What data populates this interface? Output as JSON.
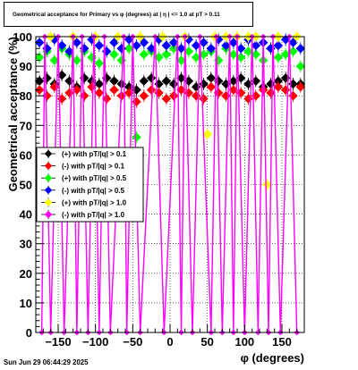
{
  "title": "Geometrical acceptance for Primary vs φ (degrees) at | η | <= 1.0 at pT > 0.11",
  "footer": "Sun Jun 29 06:44:29 2025",
  "chart_data": {
    "type": "scatter",
    "xlabel": "φ (degrees)",
    "ylabel": "Geometrical acceptance (%)",
    "xlim": [
      -180,
      180
    ],
    "ylim": [
      0,
      100
    ],
    "xticks": [
      -150,
      -100,
      -50,
      0,
      50,
      100,
      150
    ],
    "yticks": [
      0,
      10,
      20,
      30,
      40,
      50,
      60,
      70,
      80,
      90,
      100
    ],
    "grid": true,
    "legend_position": "center-left",
    "series": [
      {
        "name": "(+) with pT/|q| > 0.1",
        "color": "#000000",
        "marker": "diamond",
        "x": [
          -175,
          -165,
          -155,
          -145,
          -135,
          -125,
          -115,
          -105,
          -95,
          -85,
          -75,
          -65,
          -55,
          -45,
          -35,
          -25,
          -15,
          -5,
          5,
          15,
          25,
          35,
          45,
          55,
          65,
          75,
          85,
          95,
          105,
          115,
          125,
          135,
          145,
          155,
          165,
          175
        ],
        "y": [
          85,
          86,
          84,
          87,
          85,
          83,
          86,
          85,
          84,
          86,
          85,
          84,
          83,
          82,
          85,
          86,
          84,
          85,
          84,
          86,
          85,
          83,
          84,
          86,
          85,
          84,
          85,
          86,
          84,
          85,
          83,
          84,
          85,
          86,
          84,
          84
        ]
      },
      {
        "name": "(-) with pT/|q| > 0.1",
        "color": "#ff0000",
        "marker": "diamond",
        "x": [
          -175,
          -165,
          -155,
          -145,
          -135,
          -125,
          -115,
          -105,
          -95,
          -85,
          -75,
          -65,
          -55,
          -45,
          -35,
          -25,
          -15,
          -5,
          5,
          15,
          25,
          35,
          45,
          55,
          65,
          75,
          85,
          95,
          105,
          115,
          125,
          135,
          145,
          155,
          165,
          175
        ],
        "y": [
          82,
          80,
          83,
          79,
          81,
          82,
          80,
          83,
          81,
          79,
          82,
          80,
          81,
          78,
          80,
          82,
          81,
          79,
          80,
          82,
          81,
          80,
          79,
          83,
          81,
          80,
          82,
          81,
          79,
          80,
          82,
          81,
          83,
          82,
          80,
          83
        ]
      },
      {
        "name": "(+) with pT/|q| > 0.5",
        "color": "#00ff00",
        "marker": "diamond",
        "x": [
          -175,
          -165,
          -155,
          -145,
          -135,
          -125,
          -115,
          -105,
          -95,
          -85,
          -75,
          -65,
          -55,
          -45,
          -35,
          -25,
          -15,
          -5,
          5,
          15,
          25,
          35,
          45,
          55,
          65,
          75,
          85,
          95,
          105,
          115,
          125,
          135,
          145,
          155,
          165,
          175
        ],
        "y": [
          93,
          95,
          92,
          96,
          94,
          92,
          95,
          93,
          91,
          95,
          94,
          92,
          96,
          66,
          94,
          95,
          93,
          94,
          96,
          92,
          95,
          93,
          94,
          95,
          92,
          96,
          94,
          93,
          95,
          94,
          92,
          96,
          93,
          94,
          95,
          90
        ]
      },
      {
        "name": "(-) with pT/|q| > 0.5",
        "color": "#0000ff",
        "marker": "diamond",
        "x": [
          -175,
          -165,
          -155,
          -145,
          -135,
          -125,
          -115,
          -105,
          -95,
          -85,
          -75,
          -65,
          -55,
          -45,
          -35,
          -25,
          -15,
          -5,
          5,
          15,
          25,
          35,
          45,
          55,
          65,
          75,
          85,
          95,
          105,
          115,
          125,
          135,
          145,
          155,
          165,
          175
        ],
        "y": [
          98,
          96,
          99,
          97,
          95,
          98,
          96,
          99,
          97,
          95,
          98,
          96,
          99,
          97,
          98,
          96,
          99,
          97,
          98,
          96,
          99,
          97,
          98,
          96,
          99,
          97,
          98,
          96,
          99,
          97,
          98,
          96,
          97,
          99,
          98,
          96
        ]
      },
      {
        "name": "(+) with pT/|q| > 1.0",
        "color": "#ffff00",
        "marker": "diamond",
        "x": [
          -160,
          -130,
          -100,
          -70,
          -40,
          -10,
          20,
          50,
          60,
          75,
          90,
          105,
          115,
          130,
          145,
          170
        ],
        "y": [
          100,
          100,
          100,
          100,
          100,
          100,
          100,
          67,
          100,
          100,
          100,
          100,
          100,
          50,
          100,
          100
        ]
      },
      {
        "name": "(-) with pT/|q| > 1.0",
        "color": "#ff00ff",
        "marker": "diamond",
        "x": [
          -172,
          -168,
          -160,
          -150,
          -142,
          -130,
          -125,
          -118,
          -110,
          -102,
          -95,
          -88,
          -80,
          -62,
          -58,
          -50,
          -40,
          -20,
          -8,
          10,
          15,
          20,
          30,
          40,
          55,
          62,
          70,
          80,
          85,
          90,
          100,
          110,
          118,
          125,
          132,
          138,
          148,
          160,
          170
        ],
        "y": [
          0,
          100,
          0,
          100,
          0,
          100,
          0,
          100,
          0,
          100,
          0,
          100,
          0,
          100,
          0,
          100,
          0,
          100,
          0,
          100,
          0,
          100,
          0,
          100,
          0,
          100,
          0,
          100,
          0,
          100,
          0,
          100,
          0,
          100,
          0,
          100,
          0,
          100,
          0
        ]
      }
    ]
  }
}
